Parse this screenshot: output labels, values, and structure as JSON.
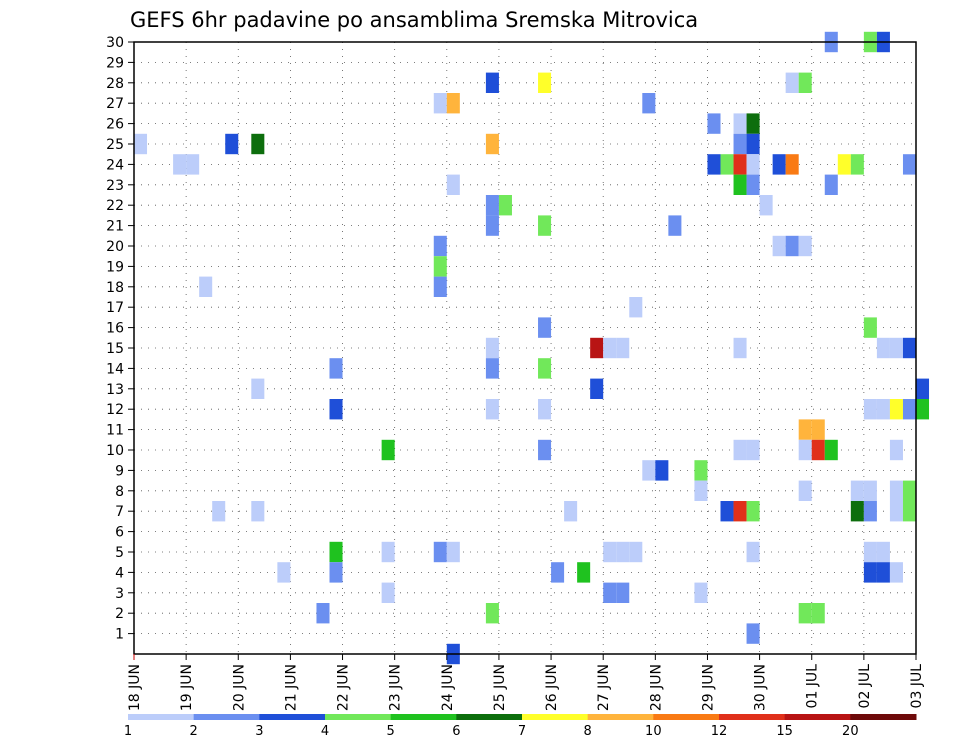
{
  "chart_data": {
    "type": "heatmap",
    "title": "GEFS 6hr padavine po ansamblima Sremska Mitrovica",
    "xlabel": "",
    "ylabel": "",
    "x_tick_labels": [
      "18 JUN",
      "19 JUN",
      "20 JUN",
      "21 JUN",
      "22 JUN",
      "23 JUN",
      "24 JUN",
      "25 JUN",
      "26 JUN",
      "27 JUN",
      "28 JUN",
      "29 JUN",
      "30 JUN",
      "01 JUL",
      "02 JUL",
      "03 JUL"
    ],
    "x_unit": "6-hour step",
    "xlim": [
      0,
      60
    ],
    "y_tick_labels": [
      "1",
      "2",
      "3",
      "4",
      "5",
      "6",
      "7",
      "8",
      "9",
      "10",
      "11",
      "12",
      "13",
      "14",
      "15",
      "16",
      "17",
      "18",
      "19",
      "20",
      "21",
      "22",
      "23",
      "24",
      "25",
      "26",
      "27",
      "28",
      "29",
      "30"
    ],
    "ylim": [
      0,
      30
    ],
    "grid": true,
    "colorbar": {
      "bounds": [
        1,
        2,
        3,
        4,
        5,
        6,
        7,
        8,
        10,
        12,
        15,
        20
      ],
      "labels": [
        "1",
        "2",
        "3",
        "4",
        "5",
        "6",
        "7",
        "8",
        "10",
        "12",
        "15",
        "20"
      ],
      "colors": [
        "#bccdfa",
        "#6b8ff0",
        "#1f4fd8",
        "#71e85a",
        "#1fc21f",
        "#0d6e0d",
        "#ffff2a",
        "#ffb43c",
        "#f97a14",
        "#e0301a",
        "#b81414",
        "#6e0a0a"
      ]
    },
    "cells": [
      {
        "m": 30,
        "t": 53,
        "v": 2
      },
      {
        "m": 30,
        "t": 56,
        "v": 4
      },
      {
        "m": 30,
        "t": 57,
        "v": 3
      },
      {
        "m": 29,
        "t": null,
        "v": null
      },
      {
        "m": 28,
        "t": 27,
        "v": 3
      },
      {
        "m": 28,
        "t": 31,
        "v": 7
      },
      {
        "m": 28,
        "t": 50,
        "v": 1
      },
      {
        "m": 28,
        "t": 51,
        "v": 4
      },
      {
        "m": 27,
        "t": 23,
        "v": 1
      },
      {
        "m": 27,
        "t": 24,
        "v": 8
      },
      {
        "m": 27,
        "t": 39,
        "v": 2
      },
      {
        "m": 26,
        "t": 44,
        "v": 2
      },
      {
        "m": 26,
        "t": 46,
        "v": 1
      },
      {
        "m": 26,
        "t": 47,
        "v": 6
      },
      {
        "m": 25,
        "t": 0,
        "v": 1
      },
      {
        "m": 25,
        "t": 7,
        "v": 3
      },
      {
        "m": 25,
        "t": 9,
        "v": 6
      },
      {
        "m": 25,
        "t": 27,
        "v": 8
      },
      {
        "m": 25,
        "t": 46,
        "v": 2
      },
      {
        "m": 25,
        "t": 47,
        "v": 3
      },
      {
        "m": 24,
        "t": 3,
        "v": 1
      },
      {
        "m": 24,
        "t": 4,
        "v": 1
      },
      {
        "m": 24,
        "t": 44,
        "v": 3
      },
      {
        "m": 24,
        "t": 45,
        "v": 4
      },
      {
        "m": 24,
        "t": 46,
        "v": 13
      },
      {
        "m": 24,
        "t": 47,
        "v": 1
      },
      {
        "m": 24,
        "t": 49,
        "v": 3
      },
      {
        "m": 24,
        "t": 50,
        "v": 10
      },
      {
        "m": 24,
        "t": 54,
        "v": 7
      },
      {
        "m": 24,
        "t": 55,
        "v": 4
      },
      {
        "m": 24,
        "t": 59,
        "v": 2
      },
      {
        "m": 23,
        "t": 24,
        "v": 1
      },
      {
        "m": 23,
        "t": 46,
        "v": 5
      },
      {
        "m": 23,
        "t": 47,
        "v": 2
      },
      {
        "m": 23,
        "t": 53,
        "v": 2
      },
      {
        "m": 22,
        "t": 27,
        "v": 2
      },
      {
        "m": 22,
        "t": 28,
        "v": 4
      },
      {
        "m": 22,
        "t": 48,
        "v": 1
      },
      {
        "m": 21,
        "t": 27,
        "v": 2
      },
      {
        "m": 21,
        "t": 31,
        "v": 4
      },
      {
        "m": 21,
        "t": 41,
        "v": 2
      },
      {
        "m": 20,
        "t": 23,
        "v": 2
      },
      {
        "m": 20,
        "t": 49,
        "v": 1
      },
      {
        "m": 20,
        "t": 50,
        "v": 2
      },
      {
        "m": 20,
        "t": 51,
        "v": 1
      },
      {
        "m": 19,
        "t": 23,
        "v": 4
      },
      {
        "m": 18,
        "t": 5,
        "v": 1
      },
      {
        "m": 18,
        "t": 23,
        "v": 2
      },
      {
        "m": 17,
        "t": 38,
        "v": 1
      },
      {
        "m": 16,
        "t": 31,
        "v": 2
      },
      {
        "m": 16,
        "t": 56,
        "v": 4
      },
      {
        "m": 15,
        "t": 27,
        "v": 1
      },
      {
        "m": 15,
        "t": 35,
        "v": 15
      },
      {
        "m": 15,
        "t": 36,
        "v": 1
      },
      {
        "m": 15,
        "t": 37,
        "v": 1
      },
      {
        "m": 15,
        "t": 46,
        "v": 1
      },
      {
        "m": 15,
        "t": 57,
        "v": 1
      },
      {
        "m": 15,
        "t": 58,
        "v": 1
      },
      {
        "m": 15,
        "t": 59,
        "v": 3
      },
      {
        "m": 14,
        "t": 15,
        "v": 2
      },
      {
        "m": 14,
        "t": 27,
        "v": 2
      },
      {
        "m": 14,
        "t": 31,
        "v": 4
      },
      {
        "m": 13,
        "t": 9,
        "v": 1
      },
      {
        "m": 13,
        "t": 35,
        "v": 3
      },
      {
        "m": 13,
        "t": 60,
        "v": 3
      },
      {
        "m": 12,
        "t": 15,
        "v": 3
      },
      {
        "m": 12,
        "t": 27,
        "v": 1
      },
      {
        "m": 12,
        "t": 31,
        "v": 1
      },
      {
        "m": 12,
        "t": 56,
        "v": 1
      },
      {
        "m": 12,
        "t": 57,
        "v": 1
      },
      {
        "m": 12,
        "t": 58,
        "v": 7
      },
      {
        "m": 12,
        "t": 59,
        "v": 2
      },
      {
        "m": 12,
        "t": 60,
        "v": 5
      },
      {
        "m": 11,
        "t": 51,
        "v": 8
      },
      {
        "m": 11,
        "t": 52,
        "v": 8
      },
      {
        "m": 10,
        "t": 19,
        "v": 5
      },
      {
        "m": 10,
        "t": 31,
        "v": 2
      },
      {
        "m": 10,
        "t": 46,
        "v": 1
      },
      {
        "m": 10,
        "t": 47,
        "v": 1
      },
      {
        "m": 10,
        "t": 51,
        "v": 1
      },
      {
        "m": 10,
        "t": 52,
        "v": 13
      },
      {
        "m": 10,
        "t": 53,
        "v": 5
      },
      {
        "m": 10,
        "t": 58,
        "v": 1
      },
      {
        "m": 9,
        "t": 39,
        "v": 1
      },
      {
        "m": 9,
        "t": 40,
        "v": 3
      },
      {
        "m": 9,
        "t": 43,
        "v": 4
      },
      {
        "m": 8,
        "t": 43,
        "v": 1
      },
      {
        "m": 8,
        "t": 51,
        "v": 1
      },
      {
        "m": 8,
        "t": 55,
        "v": 1
      },
      {
        "m": 8,
        "t": 56,
        "v": 1
      },
      {
        "m": 8,
        "t": 58,
        "v": 1
      },
      {
        "m": 8,
        "t": 59,
        "v": 4
      },
      {
        "m": 7,
        "t": 6,
        "v": 1
      },
      {
        "m": 7,
        "t": 9,
        "v": 1
      },
      {
        "m": 7,
        "t": 33,
        "v": 1
      },
      {
        "m": 7,
        "t": 45,
        "v": 3
      },
      {
        "m": 7,
        "t": 46,
        "v": 13
      },
      {
        "m": 7,
        "t": 47,
        "v": 4
      },
      {
        "m": 7,
        "t": 55,
        "v": 6
      },
      {
        "m": 7,
        "t": 56,
        "v": 2
      },
      {
        "m": 7,
        "t": 58,
        "v": 1
      },
      {
        "m": 7,
        "t": 59,
        "v": 4
      },
      {
        "m": 5,
        "t": 15,
        "v": 5
      },
      {
        "m": 5,
        "t": 19,
        "v": 1
      },
      {
        "m": 5,
        "t": 23,
        "v": 2
      },
      {
        "m": 5,
        "t": 24,
        "v": 1
      },
      {
        "m": 5,
        "t": 36,
        "v": 1
      },
      {
        "m": 5,
        "t": 37,
        "v": 1
      },
      {
        "m": 5,
        "t": 38,
        "v": 1
      },
      {
        "m": 5,
        "t": 47,
        "v": 1
      },
      {
        "m": 5,
        "t": 56,
        "v": 1
      },
      {
        "m": 5,
        "t": 57,
        "v": 1
      },
      {
        "m": 4,
        "t": 11,
        "v": 1
      },
      {
        "m": 4,
        "t": 15,
        "v": 2
      },
      {
        "m": 4,
        "t": 32,
        "v": 2
      },
      {
        "m": 4,
        "t": 34,
        "v": 5
      },
      {
        "m": 4,
        "t": 56,
        "v": 3
      },
      {
        "m": 4,
        "t": 57,
        "v": 3
      },
      {
        "m": 4,
        "t": 58,
        "v": 1
      },
      {
        "m": 3,
        "t": 19,
        "v": 1
      },
      {
        "m": 3,
        "t": 36,
        "v": 2
      },
      {
        "m": 3,
        "t": 37,
        "v": 2
      },
      {
        "m": 3,
        "t": 43,
        "v": 1
      },
      {
        "m": 2,
        "t": 14,
        "v": 2
      },
      {
        "m": 2,
        "t": 27,
        "v": 4
      },
      {
        "m": 2,
        "t": 51,
        "v": 4
      },
      {
        "m": 2,
        "t": 52,
        "v": 4
      },
      {
        "m": 1,
        "t": 47,
        "v": 2
      },
      {
        "m": 0,
        "t": 24,
        "v": 3
      }
    ]
  }
}
